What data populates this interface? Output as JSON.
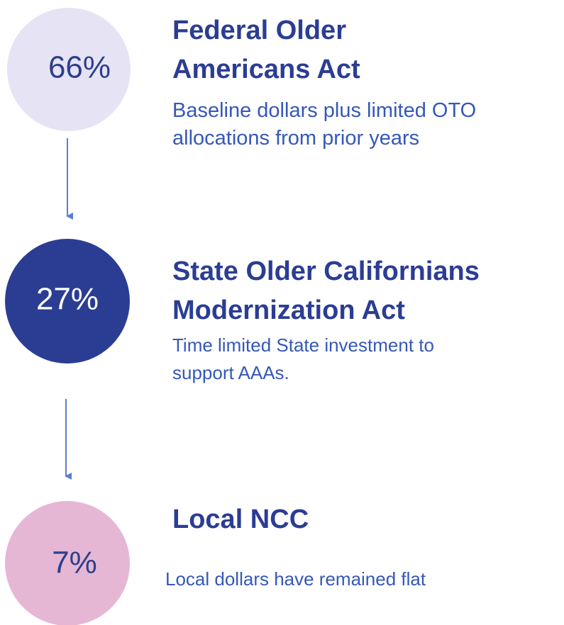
{
  "items": [
    {
      "percent": "66%",
      "title": [
        "Federal Older",
        "Americans Act"
      ],
      "description": [
        "Baseline dollars plus limited OTO",
        "allocations from prior years"
      ]
    },
    {
      "percent": "27%",
      "title": [
        "State Older Californians",
        "Modernization Act"
      ],
      "description": [
        "Time limited State investment to",
        "support AAAs."
      ]
    },
    {
      "percent": "7%",
      "title": [
        "Local NCC"
      ],
      "description": [
        "Local dollars have remained flat"
      ]
    }
  ]
}
